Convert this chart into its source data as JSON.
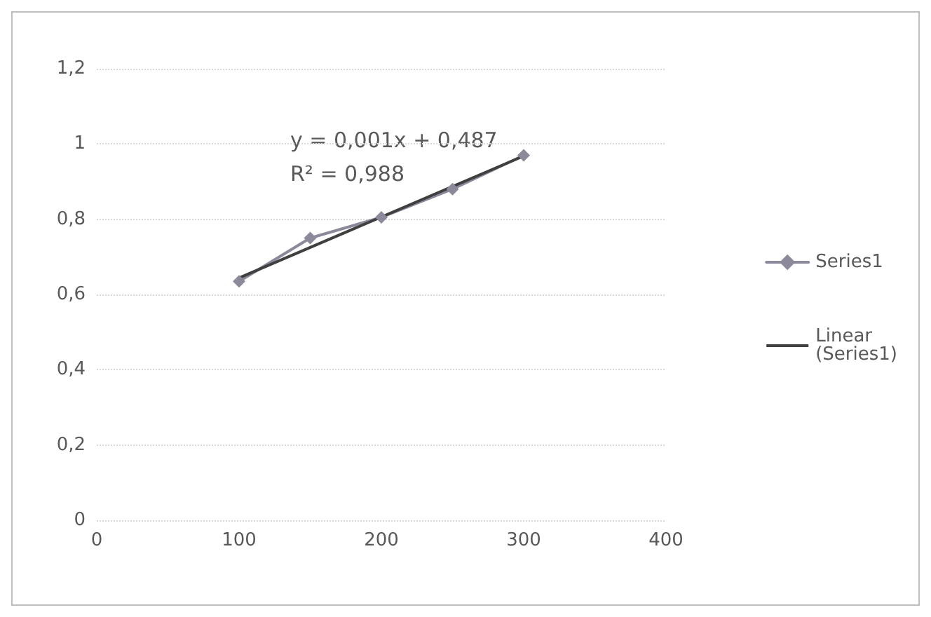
{
  "chart_data": {
    "type": "line",
    "x": [
      100,
      150,
      200,
      250,
      300
    ],
    "series": [
      {
        "name": "Series1",
        "color": "#8c8a9a",
        "values": [
          0.635,
          0.75,
          0.805,
          0.88,
          0.97
        ],
        "marker": "diamond"
      },
      {
        "name": "Linear (Series1)",
        "type": "line",
        "color": "#404040",
        "x": [
          100,
          300
        ],
        "values": [
          0.644,
          0.968
        ],
        "marker": "none"
      }
    ],
    "xlim": [
      0,
      400
    ],
    "xticks": [
      0,
      100,
      200,
      300,
      400
    ],
    "ylim": [
      0,
      1.2
    ],
    "yticks": [
      {
        "value": 0,
        "label": "0"
      },
      {
        "value": 0.2,
        "label": "0,2"
      },
      {
        "value": 0.4,
        "label": "0,4"
      },
      {
        "value": 0.6,
        "label": "0,6"
      },
      {
        "value": 0.8,
        "label": "0,8"
      },
      {
        "value": 1,
        "label": "1"
      },
      {
        "value": 1.2,
        "label": "1,2"
      }
    ],
    "grid": "y",
    "legend": "right",
    "annotations": [
      "y = 0,001x + 0,487\nR² = 0,988"
    ]
  }
}
